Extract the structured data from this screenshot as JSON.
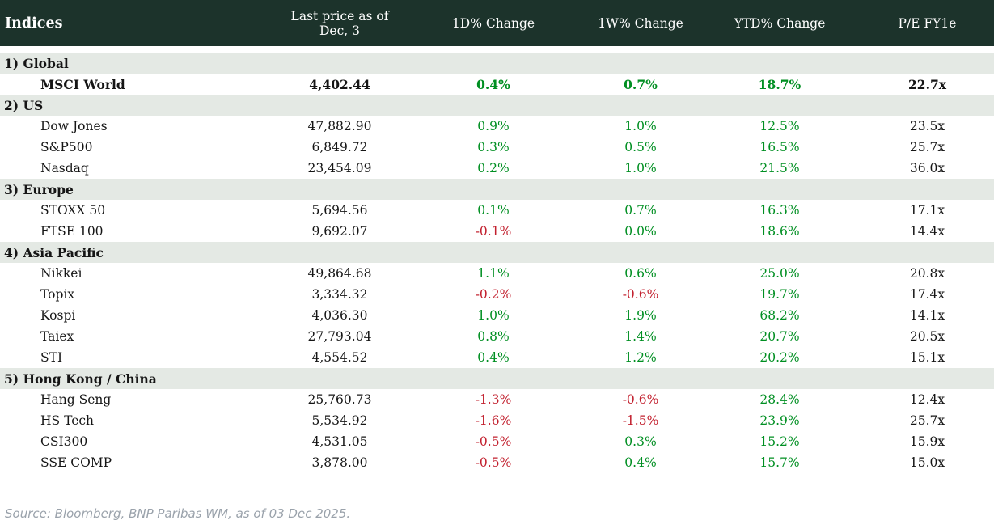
{
  "header": {
    "columns": [
      "Indices",
      "Last price as of Dec, 3",
      "1D% Change",
      "1W% Change",
      "YTD% Change",
      "P/E FY1e"
    ]
  },
  "colors": {
    "header_bg": "#1c332b",
    "section_bg": "#e4e9e4",
    "positive": "#008f22",
    "negative": "#c2202e"
  },
  "sections": [
    {
      "label": "1) Global",
      "rows": [
        {
          "name": "MSCI World",
          "last_price": "4,402.44",
          "change_1d": "0.4%",
          "change_1w": "0.7%",
          "change_ytd": "18.7%",
          "pe_fy1e": "22.7x",
          "bold": true
        }
      ]
    },
    {
      "label": "2) US",
      "rows": [
        {
          "name": "Dow Jones",
          "last_price": "47,882.90",
          "change_1d": "0.9%",
          "change_1w": "1.0%",
          "change_ytd": "12.5%",
          "pe_fy1e": "23.5x",
          "bold": false
        },
        {
          "name": "S&P500",
          "last_price": "6,849.72",
          "change_1d": "0.3%",
          "change_1w": "0.5%",
          "change_ytd": "16.5%",
          "pe_fy1e": "25.7x",
          "bold": false
        },
        {
          "name": "Nasdaq",
          "last_price": "23,454.09",
          "change_1d": "0.2%",
          "change_1w": "1.0%",
          "change_ytd": "21.5%",
          "pe_fy1e": "36.0x",
          "bold": false
        }
      ]
    },
    {
      "label": "3) Europe",
      "rows": [
        {
          "name": "STOXX 50",
          "last_price": "5,694.56",
          "change_1d": "0.1%",
          "change_1w": "0.7%",
          "change_ytd": "16.3%",
          "pe_fy1e": "17.1x",
          "bold": false
        },
        {
          "name": "FTSE 100",
          "last_price": "9,692.07",
          "change_1d": "-0.1%",
          "change_1w": "0.0%",
          "change_ytd": "18.6%",
          "pe_fy1e": "14.4x",
          "bold": false
        }
      ]
    },
    {
      "label": "4) Asia Pacific",
      "rows": [
        {
          "name": "Nikkei",
          "last_price": "49,864.68",
          "change_1d": "1.1%",
          "change_1w": "0.6%",
          "change_ytd": "25.0%",
          "pe_fy1e": "20.8x",
          "bold": false
        },
        {
          "name": "Topix",
          "last_price": "3,334.32",
          "change_1d": "-0.2%",
          "change_1w": "-0.6%",
          "change_ytd": "19.7%",
          "pe_fy1e": "17.4x",
          "bold": false
        },
        {
          "name": "Kospi",
          "last_price": "4,036.30",
          "change_1d": "1.0%",
          "change_1w": "1.9%",
          "change_ytd": "68.2%",
          "pe_fy1e": "14.1x",
          "bold": false
        },
        {
          "name": "Taiex",
          "last_price": "27,793.04",
          "change_1d": "0.8%",
          "change_1w": "1.4%",
          "change_ytd": "20.7%",
          "pe_fy1e": "20.5x",
          "bold": false
        },
        {
          "name": "STI",
          "last_price": "4,554.52",
          "change_1d": "0.4%",
          "change_1w": "1.2%",
          "change_ytd": "20.2%",
          "pe_fy1e": "15.1x",
          "bold": false
        }
      ]
    },
    {
      "label": "5) Hong Kong / China",
      "rows": [
        {
          "name": "Hang Seng",
          "last_price": "25,760.73",
          "change_1d": "-1.3%",
          "change_1w": "-0.6%",
          "change_ytd": "28.4%",
          "pe_fy1e": "12.4x",
          "bold": false
        },
        {
          "name": "HS Tech",
          "last_price": "5,534.92",
          "change_1d": "-1.6%",
          "change_1w": "-1.5%",
          "change_ytd": "23.9%",
          "pe_fy1e": "25.7x",
          "bold": false
        },
        {
          "name": "CSI300",
          "last_price": "4,531.05",
          "change_1d": "-0.5%",
          "change_1w": "0.3%",
          "change_ytd": "15.2%",
          "pe_fy1e": "15.9x",
          "bold": false
        },
        {
          "name": "SSE COMP",
          "last_price": "3,878.00",
          "change_1d": "-0.5%",
          "change_1w": "0.4%",
          "change_ytd": "15.7%",
          "pe_fy1e": "15.0x",
          "bold": false
        }
      ]
    }
  ],
  "footer": {
    "source": "Source: Bloomberg, BNP Paribas WM, as of 03 Dec 2025."
  }
}
